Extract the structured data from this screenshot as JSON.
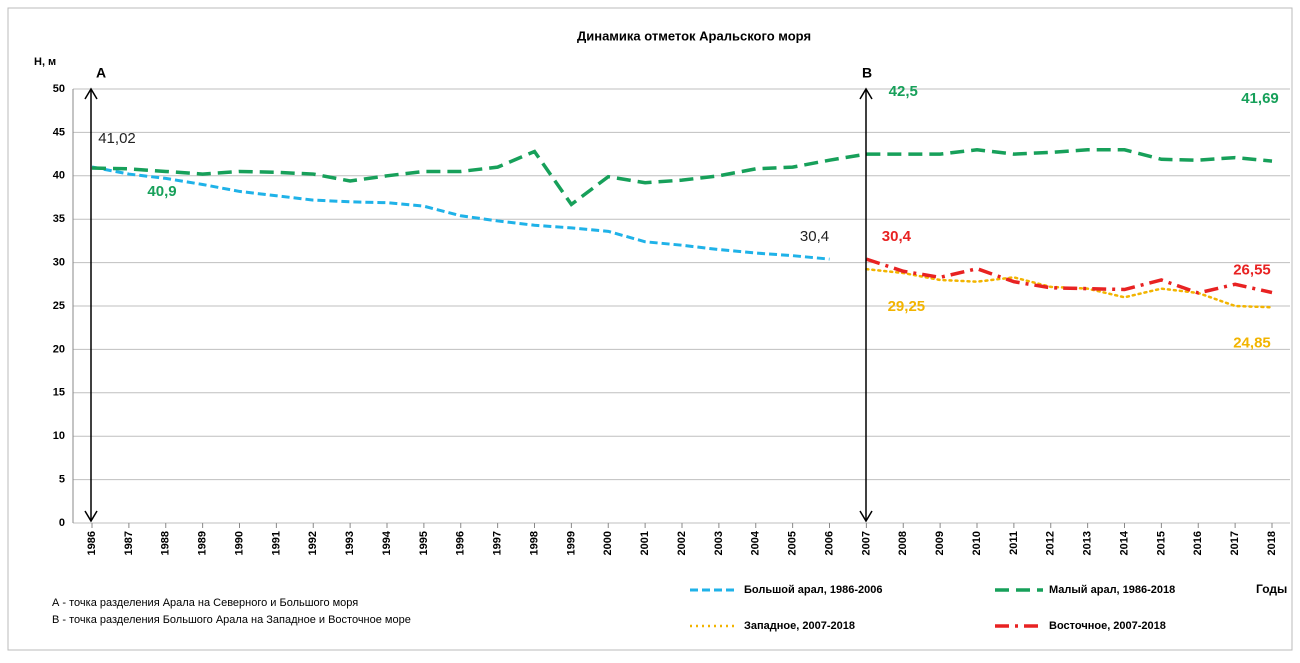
{
  "chart_data": {
    "type": "line",
    "title": "Динамика отметок Аральского моря",
    "y_label": "Н, м",
    "x_label": "Годы",
    "annotations": [
      "А",
      "В"
    ],
    "notes": [
      "А - точка разделения Арала на Северного и Большого моря",
      "В - точка разделения Большого Арала на Западное и Восточное море"
    ],
    "categories": [
      "1986",
      "1987",
      "1988",
      "1989",
      "1990",
      "1991",
      "1992",
      "1993",
      "1994",
      "1995",
      "1996",
      "1997",
      "1998",
      "1999",
      "2000",
      "2001",
      "2002",
      "2003",
      "2004",
      "2005",
      "2006",
      "2007",
      "2008",
      "2009",
      "2010",
      "2011",
      "2012",
      "2013",
      "2014",
      "2015",
      "2016",
      "2017",
      "2018"
    ],
    "ylim": [
      0,
      50
    ],
    "yticks": [
      0,
      5,
      10,
      15,
      20,
      25,
      30,
      35,
      40,
      45,
      50
    ],
    "grid": true,
    "series": [
      {
        "name": "Большой арал, 1986-2006",
        "color": "#1fb2e8",
        "dash": "dashed",
        "values": [
          41.02,
          40.2,
          39.7,
          39.0,
          38.2,
          37.7,
          37.2,
          37.0,
          36.9,
          36.5,
          35.4,
          34.8,
          34.3,
          34.0,
          33.6,
          32.4,
          32.0,
          31.5,
          31.1,
          30.8,
          30.4,
          null,
          null,
          null,
          null,
          null,
          null,
          null,
          null,
          null,
          null,
          null,
          null
        ],
        "value_labels": [
          "41,02",
          null,
          null,
          null,
          null,
          null,
          null,
          null,
          null,
          null,
          null,
          null,
          null,
          null,
          null,
          null,
          null,
          null,
          null,
          null,
          "30,4",
          null,
          null,
          null,
          null,
          null,
          null,
          null,
          null,
          null,
          null,
          null,
          null
        ]
      },
      {
        "name": "Малый арал, 1986-2018",
        "color": "#17a05a",
        "dash": "longdash",
        "values": [
          40.9,
          40.8,
          40.5,
          40.2,
          40.5,
          40.4,
          40.2,
          39.4,
          40.0,
          40.5,
          40.5,
          41.0,
          42.8,
          36.7,
          39.9,
          39.2,
          39.5,
          40.0,
          40.8,
          41.0,
          41.8,
          42.5,
          42.5,
          42.5,
          43.0,
          42.5,
          42.7,
          43.0,
          43.0,
          41.9,
          41.8,
          42.1,
          41.69
        ],
        "value_labels": [
          "40,9",
          null,
          null,
          null,
          null,
          null,
          null,
          null,
          null,
          null,
          null,
          null,
          null,
          null,
          null,
          null,
          null,
          null,
          null,
          null,
          null,
          null,
          "42,5",
          null,
          null,
          null,
          null,
          null,
          null,
          null,
          null,
          null,
          "41,69"
        ]
      },
      {
        "name": "Западное, 2007-2018",
        "color": "#f2b400",
        "dash": "dotted",
        "values": [
          null,
          null,
          null,
          null,
          null,
          null,
          null,
          null,
          null,
          null,
          null,
          null,
          null,
          null,
          null,
          null,
          null,
          null,
          null,
          null,
          null,
          29.25,
          28.8,
          28.0,
          27.8,
          28.3,
          27.2,
          27.0,
          26.0,
          27.0,
          26.5,
          25.0,
          24.85
        ],
        "value_labels": [
          null,
          null,
          null,
          null,
          null,
          null,
          null,
          null,
          null,
          null,
          null,
          null,
          null,
          null,
          null,
          null,
          null,
          null,
          null,
          null,
          null,
          "29,25",
          null,
          null,
          null,
          null,
          null,
          null,
          null,
          null,
          null,
          null,
          "24,85"
        ]
      },
      {
        "name": "Восточное, 2007-2018",
        "color": "#e82222",
        "dash": "dashdot",
        "values": [
          null,
          null,
          null,
          null,
          null,
          null,
          null,
          null,
          null,
          null,
          null,
          null,
          null,
          null,
          null,
          null,
          null,
          null,
          null,
          null,
          null,
          30.4,
          29.0,
          28.3,
          29.3,
          27.8,
          27.1,
          27.0,
          26.9,
          28.0,
          26.5,
          27.5,
          26.55
        ],
        "value_labels": [
          null,
          null,
          null,
          null,
          null,
          null,
          null,
          null,
          null,
          null,
          null,
          null,
          null,
          null,
          null,
          null,
          null,
          null,
          null,
          null,
          null,
          "30,4",
          null,
          null,
          null,
          null,
          null,
          null,
          null,
          null,
          null,
          null,
          "26,55"
        ]
      }
    ]
  }
}
